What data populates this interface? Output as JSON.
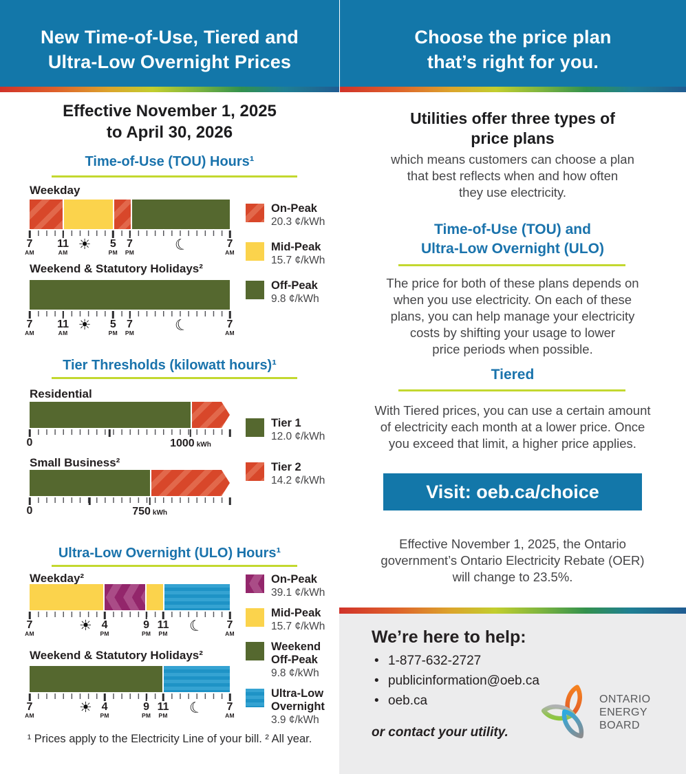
{
  "colors": {
    "header_blue": "#1377A9",
    "heading_blue": "#1A73AC",
    "underline_green": "#C3D82F",
    "button_blue": "#1377A9",
    "panel_gray": "#ECECED",
    "text_dark": "#454547",
    "fills": {
      "onpeak_red": {
        "base": "#D8472A",
        "alt": "#E2684B",
        "pattern": "hatch"
      },
      "midpeak_yellow": {
        "base": "#FBD34C",
        "pattern": "solid"
      },
      "offpeak_green": {
        "base": "#55682F",
        "pattern": "solid"
      },
      "tier1_green": {
        "base": "#55682F",
        "pattern": "solid"
      },
      "tier2_red": {
        "base": "#D8472A",
        "alt": "#E2684B",
        "pattern": "hatch"
      },
      "ulo_onpeak_purple": {
        "base": "#93266B",
        "alt": "#AA4C87",
        "pattern": "chevron"
      },
      "ulo_blue": {
        "base": "#1E93C6",
        "alt": "#35A3D2",
        "pattern": "hstripes"
      }
    }
  },
  "header": {
    "left_title": "New Time-of-Use, Tiered and\nUltra-Low Overnight Prices",
    "right_title": "Choose the price plan\nthat’s right for you."
  },
  "left_column": {
    "effective_dates": "Effective November 1, 2025\nto April 30, 2026",
    "footnote": "¹ Prices apply to the Electricity Line of your bill. ² All year."
  },
  "right_column": {
    "types_heading": "Utilities offer three types of\nprice plans",
    "types_body": "which means customers can choose a plan\nthat best reflects when and how often\nthey use electricity.",
    "tou_ulo_heading": "Time-of-Use (TOU) and\nUltra-Low Overnight (ULO)",
    "tou_ulo_body": "The price for both of these plans depends on\nwhen you use electricity. On each of these\nplans, you can help manage your electricity\ncosts by shifting your usage to lower\nprice periods when possible.",
    "tiered_heading": "Tiered",
    "tiered_body": "With Tiered prices, you can use a certain amount\nof electricity each month at a lower price. Once\nyou exceed that limit, a higher price applies.",
    "visit_button": "Visit: oeb.ca/choice",
    "oer_note": "Effective November 1, 2025, the Ontario\ngovernment’s Ontario Electricity Rebate (OER)\nwill change to 23.5%.",
    "help": {
      "heading": "We’re here to help:",
      "items": [
        "1-877-632-2727",
        "publicinformation@oeb.ca",
        "oeb.ca"
      ],
      "footer": "or contact your utility.",
      "logo_text": "ONTARIO\nENERGY\nBOARD"
    }
  },
  "chart_data": [
    {
      "type": "timeline",
      "title": "Time-of-Use (TOU) Hours¹",
      "unit": "¢/kWh",
      "rows": [
        {
          "label": "Weekday",
          "segments": [
            {
              "period": "On-Peak",
              "fill": "onpeak_red",
              "start": "7 AM",
              "end": "11 AM",
              "hours": 4
            },
            {
              "period": "Mid-Peak",
              "fill": "midpeak_yellow",
              "start": "11 AM",
              "end": "5 PM",
              "hours": 6
            },
            {
              "period": "On-Peak",
              "fill": "onpeak_red",
              "start": "5 PM",
              "end": "7 PM",
              "hours": 2
            },
            {
              "period": "Off-Peak",
              "fill": "offpeak_green",
              "start": "7 PM",
              "end": "7 AM",
              "hours": 12
            }
          ],
          "axis": [
            {
              "num": "7",
              "sub": "AM",
              "pct": 0
            },
            {
              "num": "11",
              "sub": "AM",
              "pct": 16.7
            },
            {
              "icon": "sun",
              "pct": 27.5
            },
            {
              "num": "5",
              "sub": "PM",
              "pct": 41.7
            },
            {
              "num": "7",
              "sub": "PM",
              "pct": 50
            },
            {
              "icon": "moon",
              "pct": 76
            },
            {
              "num": "7",
              "sub": "AM",
              "pct": 100
            }
          ]
        },
        {
          "label": "Weekend & Statutory Holidays²",
          "segments": [
            {
              "period": "Off-Peak",
              "fill": "offpeak_green",
              "start": "7 AM",
              "end": "7 AM",
              "hours": 24
            }
          ],
          "axis": [
            {
              "num": "7",
              "sub": "AM",
              "pct": 0
            },
            {
              "num": "11",
              "sub": "AM",
              "pct": 16.7
            },
            {
              "icon": "sun",
              "pct": 27.5
            },
            {
              "num": "5",
              "sub": "PM",
              "pct": 41.7
            },
            {
              "num": "7",
              "sub": "PM",
              "pct": 50
            },
            {
              "icon": "moon",
              "pct": 76
            },
            {
              "num": "7",
              "sub": "AM",
              "pct": 100
            }
          ]
        }
      ],
      "legend": [
        {
          "label": "On-Peak",
          "price": "20.3 ¢/kWh",
          "fill": "onpeak_red"
        },
        {
          "label": "Mid-Peak",
          "price": "15.7 ¢/kWh",
          "fill": "midpeak_yellow"
        },
        {
          "label": "Off-Peak",
          "price": "9.8 ¢/kWh",
          "fill": "offpeak_green"
        }
      ]
    },
    {
      "type": "threshold-bar",
      "title": "Tier Thresholds (kilowatt hours)¹",
      "rows": [
        {
          "label": "Residential",
          "tier1_kwh": 1000,
          "tier1_pct": 80.4,
          "axis": [
            {
              "num": "0",
              "pct": 0
            },
            {
              "num": "1000",
              "suffix": "kWh",
              "pct": 80.4
            }
          ],
          "majors": [
            0,
            40,
            80.4,
            100
          ]
        },
        {
          "label": "Small Business²",
          "tier1_kwh": 750,
          "tier1_pct": 60,
          "axis": [
            {
              "num": "0",
              "pct": 0
            },
            {
              "num": "750",
              "suffix": "kWh",
              "pct": 60
            }
          ],
          "majors": [
            0,
            30,
            60,
            100
          ]
        }
      ],
      "legend": [
        {
          "label": "Tier 1",
          "price": "12.0 ¢/kWh",
          "fill": "tier1_green"
        },
        {
          "label": "Tier 2",
          "price": "14.2 ¢/kWh",
          "fill": "tier2_red"
        }
      ]
    },
    {
      "type": "timeline",
      "title": "Ultra-Low Overnight (ULO) Hours¹",
      "unit": "¢/kWh",
      "rows": [
        {
          "label": "Weekday²",
          "segments": [
            {
              "period": "Mid-Peak",
              "fill": "midpeak_yellow",
              "start": "7 AM",
              "end": "4 PM",
              "hours": 9
            },
            {
              "period": "On-Peak",
              "fill": "ulo_onpeak_purple",
              "start": "4 PM",
              "end": "9 PM",
              "hours": 5
            },
            {
              "period": "Mid-Peak",
              "fill": "midpeak_yellow",
              "start": "9 PM",
              "end": "11 PM",
              "hours": 2
            },
            {
              "period": "Ultra-Low Overnight",
              "fill": "ulo_blue",
              "start": "11 PM",
              "end": "7 AM",
              "hours": 8
            }
          ],
          "axis": [
            {
              "num": "7",
              "sub": "AM",
              "pct": 0
            },
            {
              "icon": "sun",
              "pct": 28
            },
            {
              "num": "4",
              "sub": "PM",
              "pct": 37.5
            },
            {
              "num": "9",
              "sub": "PM",
              "pct": 58.3
            },
            {
              "num": "11",
              "sub": "PM",
              "pct": 66.7
            },
            {
              "icon": "moon",
              "pct": 83
            },
            {
              "num": "7",
              "sub": "AM",
              "pct": 100
            }
          ]
        },
        {
          "label": "Weekend & Statutory Holidays²",
          "segments": [
            {
              "period": "Weekend Off-Peak",
              "fill": "offpeak_green",
              "start": "7 AM",
              "end": "11 PM",
              "hours": 16
            },
            {
              "period": "Ultra-Low Overnight",
              "fill": "ulo_blue",
              "start": "11 PM",
              "end": "7 AM",
              "hours": 8
            }
          ],
          "axis": [
            {
              "num": "7",
              "sub": "AM",
              "pct": 0
            },
            {
              "icon": "sun",
              "pct": 28
            },
            {
              "num": "4",
              "sub": "PM",
              "pct": 37.5
            },
            {
              "num": "9",
              "sub": "PM",
              "pct": 58.3
            },
            {
              "num": "11",
              "sub": "PM",
              "pct": 66.7
            },
            {
              "icon": "moon",
              "pct": 83
            },
            {
              "num": "7",
              "sub": "AM",
              "pct": 100
            }
          ]
        }
      ],
      "legend": [
        {
          "label": "On-Peak",
          "price": "39.1 ¢/kWh",
          "fill": "ulo_onpeak_purple"
        },
        {
          "label": "Mid-Peak",
          "price": "15.7 ¢/kWh",
          "fill": "midpeak_yellow"
        },
        {
          "label": "Weekend\nOff-Peak",
          "price": "9.8 ¢/kWh",
          "fill": "offpeak_green"
        },
        {
          "label": "Ultra-Low\nOvernight",
          "price": "3.9 ¢/kWh",
          "fill": "ulo_blue"
        }
      ]
    }
  ]
}
